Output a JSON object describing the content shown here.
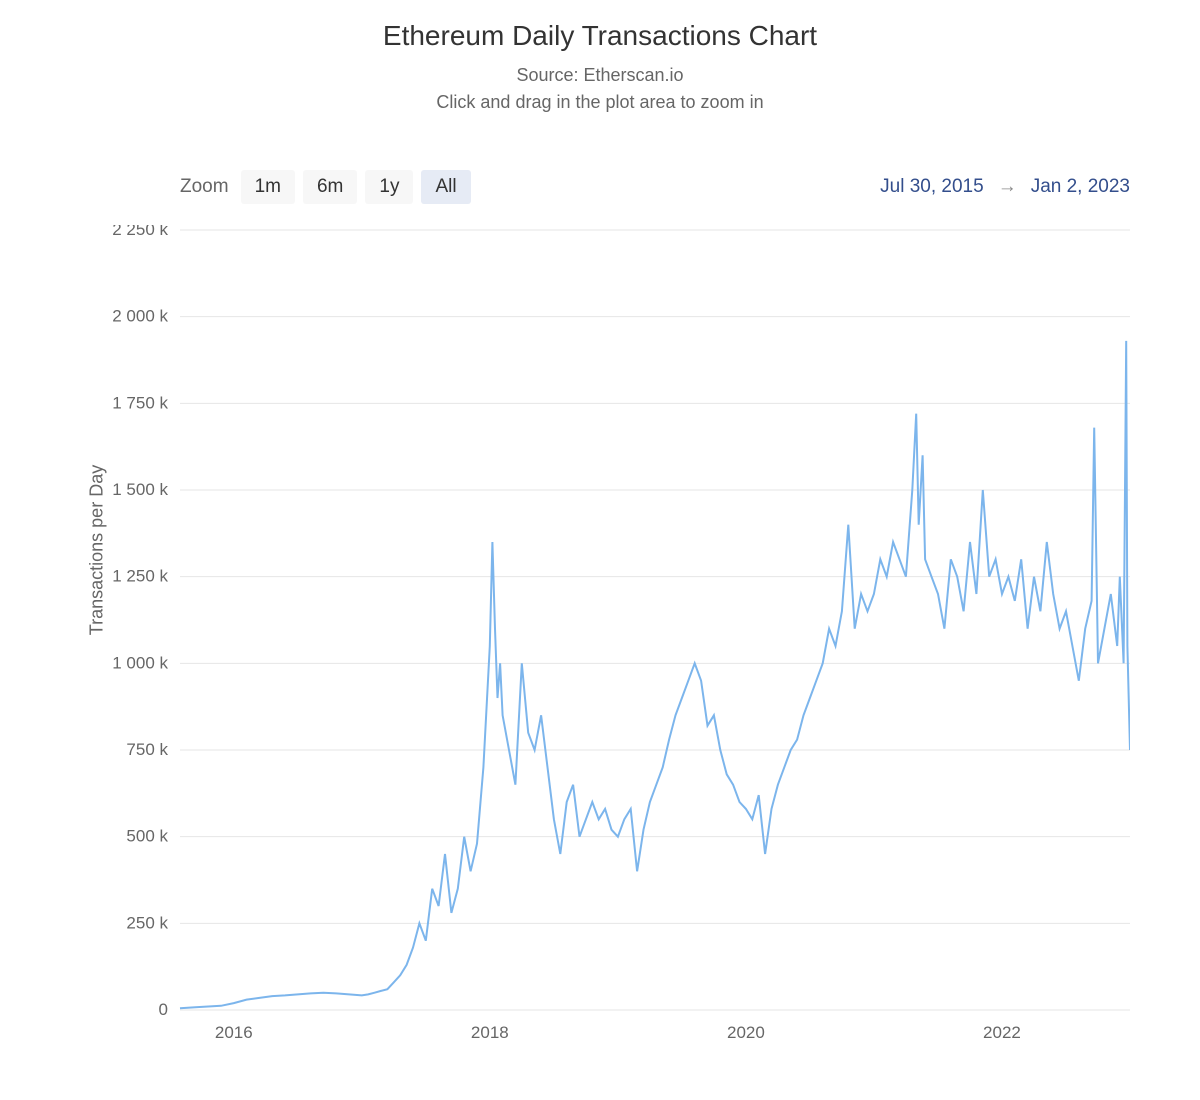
{
  "title": "Ethereum Daily Transactions Chart",
  "subtitle_line1": "Source: Etherscan.io",
  "subtitle_line2": "Click and drag in the plot area to zoom in",
  "zoom_label": "Zoom",
  "zoom_buttons": [
    {
      "label": "1m",
      "active": false
    },
    {
      "label": "6m",
      "active": false
    },
    {
      "label": "1y",
      "active": false
    },
    {
      "label": "All",
      "active": true
    }
  ],
  "date_range": {
    "start": "Jul 30, 2015",
    "end": "Jan 2, 2023",
    "arrow": "→"
  },
  "y_axis": {
    "title": "Transactions per Day",
    "min": 0,
    "max": 2250,
    "tick_step": 250,
    "tick_suffix": " k",
    "ticks": [
      0,
      250,
      500,
      750,
      1000,
      1250,
      1500,
      1750,
      2000,
      2250
    ],
    "tick_labels": [
      "0",
      "250 k",
      "500 k",
      "750 k",
      "1 000 k",
      "1 250 k",
      "1 500 k",
      "1 750 k",
      "2 000 k",
      "2 250 k"
    ]
  },
  "x_axis": {
    "start_year": 2015.58,
    "end_year": 2023.0,
    "ticks": [
      2016,
      2018,
      2020,
      2022
    ],
    "tick_labels": [
      "2016",
      "2018",
      "2020",
      "2022"
    ]
  },
  "chart": {
    "type": "line",
    "line_color": "#7cb5ec",
    "line_width": 2,
    "background_color": "#ffffff",
    "grid_color": "#e6e6e6",
    "title_fontsize": 28,
    "subtitle_fontsize": 18,
    "axis_label_fontsize": 18,
    "tick_fontsize": 17,
    "active_button_bg": "#e6ebf5",
    "button_bg": "#f7f7f7",
    "date_range_color": "#334e8c"
  },
  "series": {
    "name": "Transactions per Day",
    "x": [
      2015.58,
      2015.7,
      2015.8,
      2015.9,
      2016.0,
      2016.1,
      2016.2,
      2016.3,
      2016.4,
      2016.5,
      2016.6,
      2016.7,
      2016.8,
      2016.9,
      2017.0,
      2017.05,
      2017.1,
      2017.15,
      2017.2,
      2017.25,
      2017.3,
      2017.35,
      2017.4,
      2017.45,
      2017.5,
      2017.55,
      2017.6,
      2017.65,
      2017.7,
      2017.75,
      2017.8,
      2017.85,
      2017.9,
      2017.95,
      2018.0,
      2018.02,
      2018.04,
      2018.06,
      2018.08,
      2018.1,
      2018.15,
      2018.2,
      2018.25,
      2018.3,
      2018.35,
      2018.4,
      2018.45,
      2018.5,
      2018.55,
      2018.6,
      2018.65,
      2018.7,
      2018.75,
      2018.8,
      2018.85,
      2018.9,
      2018.95,
      2019.0,
      2019.05,
      2019.1,
      2019.15,
      2019.2,
      2019.25,
      2019.3,
      2019.35,
      2019.4,
      2019.45,
      2019.5,
      2019.55,
      2019.6,
      2019.65,
      2019.7,
      2019.75,
      2019.8,
      2019.85,
      2019.9,
      2019.95,
      2020.0,
      2020.05,
      2020.1,
      2020.15,
      2020.2,
      2020.25,
      2020.3,
      2020.35,
      2020.4,
      2020.45,
      2020.5,
      2020.55,
      2020.6,
      2020.65,
      2020.7,
      2020.75,
      2020.8,
      2020.85,
      2020.9,
      2020.95,
      2021.0,
      2021.05,
      2021.1,
      2021.15,
      2021.2,
      2021.25,
      2021.3,
      2021.33,
      2021.35,
      2021.38,
      2021.4,
      2021.45,
      2021.5,
      2021.55,
      2021.6,
      2021.65,
      2021.7,
      2021.75,
      2021.8,
      2021.85,
      2021.9,
      2021.95,
      2022.0,
      2022.05,
      2022.1,
      2022.15,
      2022.2,
      2022.25,
      2022.3,
      2022.35,
      2022.4,
      2022.45,
      2022.5,
      2022.55,
      2022.6,
      2022.65,
      2022.7,
      2022.72,
      2022.75,
      2022.8,
      2022.85,
      2022.9,
      2022.92,
      2022.95,
      2022.97,
      2022.98,
      2023.0
    ],
    "y": [
      5,
      8,
      10,
      12,
      20,
      30,
      35,
      40,
      42,
      45,
      48,
      50,
      48,
      45,
      42,
      45,
      50,
      55,
      60,
      80,
      100,
      130,
      180,
      250,
      200,
      350,
      300,
      450,
      280,
      350,
      500,
      400,
      480,
      700,
      1050,
      1350,
      1100,
      900,
      1000,
      850,
      750,
      650,
      1000,
      800,
      750,
      850,
      700,
      550,
      450,
      600,
      650,
      500,
      550,
      600,
      550,
      580,
      520,
      500,
      550,
      580,
      400,
      520,
      600,
      650,
      700,
      780,
      850,
      900,
      950,
      1000,
      950,
      820,
      850,
      750,
      680,
      650,
      600,
      580,
      550,
      620,
      450,
      580,
      650,
      700,
      750,
      780,
      850,
      900,
      950,
      1000,
      1100,
      1050,
      1150,
      1400,
      1100,
      1200,
      1150,
      1200,
      1300,
      1250,
      1350,
      1300,
      1250,
      1500,
      1720,
      1400,
      1600,
      1300,
      1250,
      1200,
      1100,
      1300,
      1250,
      1150,
      1350,
      1200,
      1500,
      1250,
      1300,
      1200,
      1250,
      1180,
      1300,
      1100,
      1250,
      1150,
      1350,
      1200,
      1100,
      1150,
      1050,
      950,
      1100,
      1180,
      1680,
      1000,
      1100,
      1200,
      1050,
      1250,
      1000,
      1930,
      1050,
      750
    ]
  }
}
